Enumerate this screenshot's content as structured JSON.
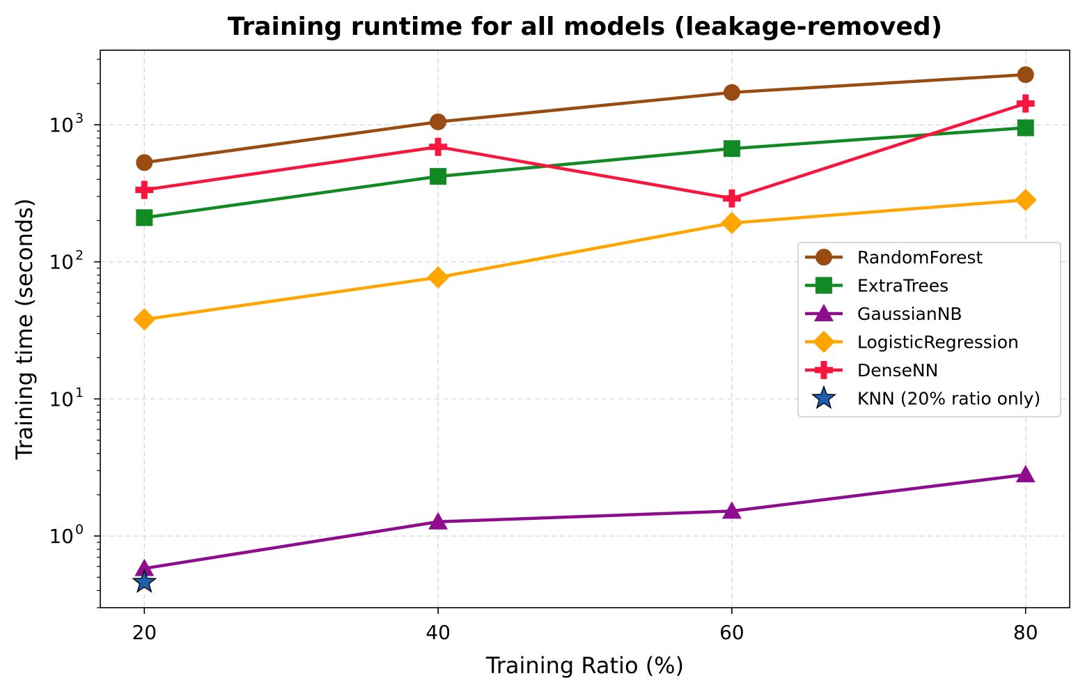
{
  "chart_data": {
    "type": "line",
    "title": "Training runtime for all models (leakage-removed)",
    "xlabel": "Training Ratio (%)",
    "ylabel": "Training time (seconds)",
    "x": [
      20,
      40,
      60,
      80
    ],
    "x_ticks": [
      "20",
      "40",
      "60",
      "80"
    ],
    "y_scale": "log",
    "ylim": [
      0.3,
      3500
    ],
    "xlim": [
      17,
      83
    ],
    "y_ticks": [
      {
        "value": 1,
        "base": "10",
        "exp": "0"
      },
      {
        "value": 10,
        "base": "10",
        "exp": "1"
      },
      {
        "value": 100,
        "base": "10",
        "exp": "2"
      },
      {
        "value": 1000,
        "base": "10",
        "exp": "3"
      }
    ],
    "grid": true,
    "legend_position": "center-right",
    "series": [
      {
        "name": "RandomForest",
        "color": "#994C12",
        "marker": "circle",
        "x": [
          20,
          40,
          60,
          80
        ],
        "values": [
          530,
          1050,
          1720,
          2320
        ]
      },
      {
        "name": "ExtraTrees",
        "color": "#118A24",
        "marker": "square",
        "x": [
          20,
          40,
          60,
          80
        ],
        "values": [
          210,
          420,
          670,
          950
        ]
      },
      {
        "name": "GaussianNB",
        "color": "#8E0C8E",
        "marker": "triangle",
        "x": [
          20,
          40,
          60,
          80
        ],
        "values": [
          0.58,
          1.27,
          1.52,
          2.8
        ]
      },
      {
        "name": "LogisticRegression",
        "color": "#FFA500",
        "marker": "diamond",
        "x": [
          20,
          40,
          60,
          80
        ],
        "values": [
          38,
          77,
          192,
          283
        ]
      },
      {
        "name": "DenseNN",
        "color": "#F8163F",
        "marker": "plus",
        "x": [
          20,
          40,
          60,
          80
        ],
        "values": [
          335,
          690,
          290,
          1430
        ]
      },
      {
        "name": "KNN (20% ratio only)",
        "color": "#1F5FB0",
        "marker": "star",
        "x": [
          20
        ],
        "values": [
          0.46
        ]
      }
    ]
  }
}
